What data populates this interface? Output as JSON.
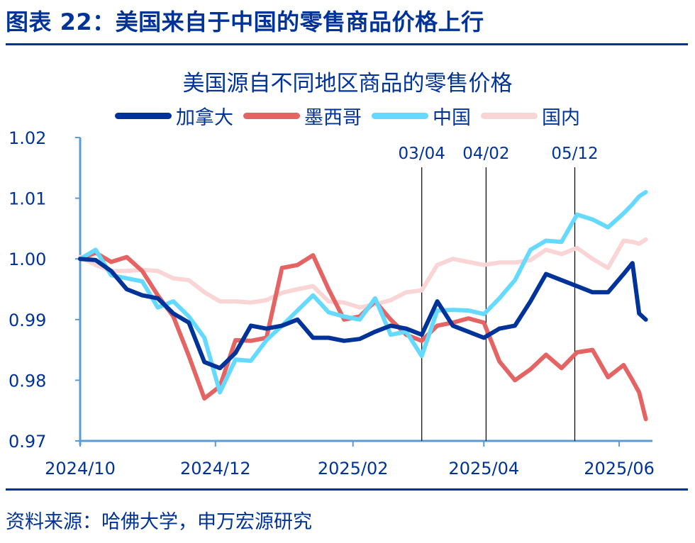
{
  "figure_title": "图表 22：美国来自于中国的零售商品价格上行",
  "source": "资料来源：哈佛大学，申万宏源研究",
  "chart_data": {
    "type": "line",
    "title": "美国源自不同地区商品的零售价格",
    "xlabel": "",
    "ylabel": "",
    "ylim": [
      0.97,
      1.02
    ],
    "yticks": [
      "1.02",
      "1.01",
      "1.00",
      "0.99",
      "0.98",
      "0.97"
    ],
    "xlim": [
      "2024-10-01",
      "2025-06-16"
    ],
    "xticks": [
      {
        "date": "2024-10-01",
        "label": "2024/10"
      },
      {
        "date": "2024-12-01",
        "label": "2024/12"
      },
      {
        "date": "2025-02-01",
        "label": "2025/02"
      },
      {
        "date": "2025-04-01",
        "label": "2025/04"
      },
      {
        "date": "2025-06-01",
        "label": "2025/06"
      }
    ],
    "grid": false,
    "legend": "top",
    "annotations": [
      {
        "date": "2025-03-04",
        "label": "03/04"
      },
      {
        "date": "2025-04-02",
        "label": "04/02"
      },
      {
        "date": "2025-05-12",
        "label": "05/12"
      }
    ],
    "x": [
      "2024-10-01",
      "2024-10-08",
      "2024-10-15",
      "2024-10-22",
      "2024-10-29",
      "2024-11-05",
      "2024-11-12",
      "2024-11-19",
      "2024-11-26",
      "2024-12-03",
      "2024-12-10",
      "2024-12-17",
      "2024-12-24",
      "2024-12-31",
      "2025-01-07",
      "2025-01-14",
      "2025-01-21",
      "2025-01-28",
      "2025-02-04",
      "2025-02-11",
      "2025-02-18",
      "2025-02-25",
      "2025-03-04",
      "2025-03-11",
      "2025-03-18",
      "2025-03-25",
      "2025-04-01",
      "2025-04-08",
      "2025-04-15",
      "2025-04-22",
      "2025-04-29",
      "2025-05-06",
      "2025-05-13",
      "2025-05-20",
      "2025-05-27",
      "2025-06-03",
      "2025-06-07",
      "2025-06-10",
      "2025-06-13"
    ],
    "series": [
      {
        "name": "加拿大",
        "color": "#003399",
        "values": [
          1.0,
          0.9998,
          0.998,
          0.995,
          0.994,
          0.9935,
          0.991,
          0.9895,
          0.983,
          0.982,
          0.9845,
          0.989,
          0.9885,
          0.989,
          0.99,
          0.987,
          0.987,
          0.9865,
          0.9868,
          0.988,
          0.989,
          0.9885,
          0.9875,
          0.993,
          0.989,
          0.988,
          0.987,
          0.9885,
          0.989,
          0.993,
          0.9975,
          0.9965,
          0.9955,
          0.9945,
          0.9945,
          0.9975,
          0.9993,
          0.991,
          0.99
        ]
      },
      {
        "name": "墨西哥",
        "color": "#E46464",
        "values": [
          1.0,
          1.001,
          0.9995,
          1.0003,
          0.998,
          0.994,
          0.9905,
          0.984,
          0.977,
          0.979,
          0.9866,
          0.9865,
          0.987,
          0.9985,
          0.999,
          1.0006,
          0.995,
          0.99,
          0.9905,
          0.993,
          0.99,
          0.9875,
          0.9865,
          0.989,
          0.9895,
          0.9902,
          0.9895,
          0.9831,
          0.98,
          0.9818,
          0.9842,
          0.982,
          0.9846,
          0.985,
          0.9805,
          0.9825,
          0.98,
          0.978,
          0.9736
        ]
      },
      {
        "name": "中国",
        "color": "#66D9FF",
        "values": [
          1.0,
          1.0015,
          0.9973,
          0.9968,
          0.9963,
          0.992,
          0.993,
          0.9905,
          0.987,
          0.978,
          0.9834,
          0.9832,
          0.9866,
          0.989,
          0.9915,
          0.994,
          0.9912,
          0.9905,
          0.99,
          0.9935,
          0.9875,
          0.988,
          0.984,
          0.9915,
          0.9916,
          0.9915,
          0.9909,
          0.9935,
          0.9965,
          1.0015,
          1.003,
          1.0028,
          1.0073,
          1.0065,
          1.0052,
          1.0075,
          1.009,
          1.0103,
          1.011
        ]
      },
      {
        "name": "国内",
        "color": "#F9D5D5",
        "values": [
          1.0003,
          0.999,
          0.998,
          0.998,
          0.9982,
          0.998,
          0.9968,
          0.9965,
          0.9945,
          0.993,
          0.993,
          0.9928,
          0.9932,
          0.9944,
          0.995,
          0.9955,
          0.993,
          0.9928,
          0.992,
          0.9925,
          0.9932,
          0.9945,
          0.9948,
          0.999,
          1.0,
          0.9995,
          0.999,
          0.9994,
          0.9994,
          0.9998,
          1.0015,
          1.0008,
          1.0018,
          1.0,
          0.9985,
          1.003,
          1.0028,
          1.0025,
          1.0032
        ]
      }
    ]
  }
}
